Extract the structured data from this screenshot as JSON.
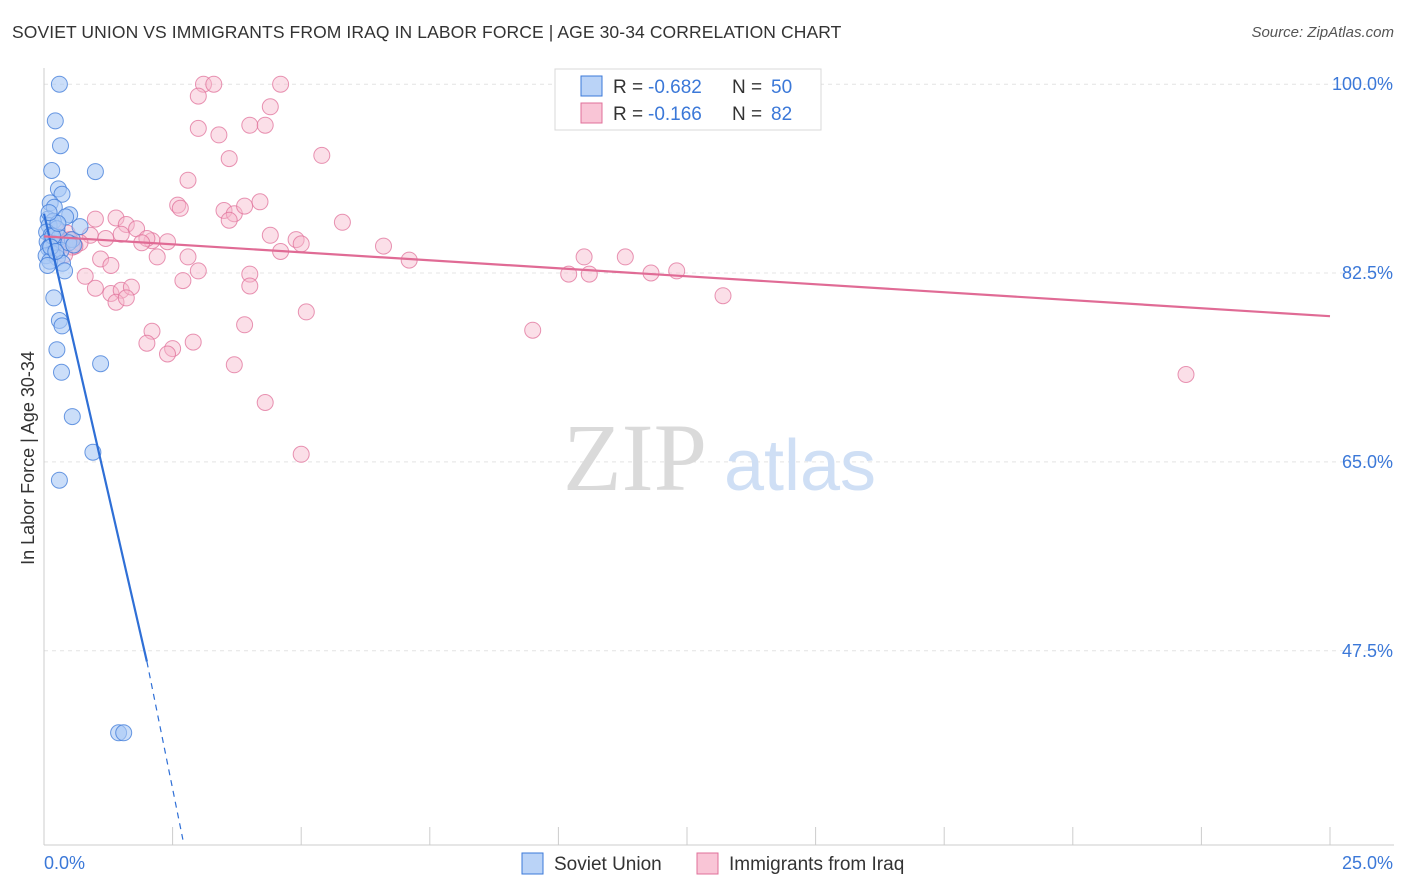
{
  "header": {
    "title": "SOVIET UNION VS IMMIGRANTS FROM IRAQ IN LABOR FORCE | AGE 30-34 CORRELATION CHART",
    "source": "Source: ZipAtlas.com"
  },
  "watermark": {
    "zip": "ZIP",
    "atlas": "atlas"
  },
  "chart_data": {
    "type": "scatter",
    "title": "SOVIET UNION VS IMMIGRANTS FROM IRAQ IN LABOR FORCE | AGE 30-34 CORRELATION CHART",
    "xlabel": "",
    "ylabel": "In Labor Force | Age 30-34",
    "xlim": [
      0,
      25
    ],
    "ylim": [
      29.5,
      101.5
    ],
    "x_tick_labels": {
      "min": "0.0%",
      "max": "25.0%"
    },
    "y_ticks": [
      {
        "value": 100.0,
        "label": "100.0%"
      },
      {
        "value": 82.5,
        "label": "82.5%"
      },
      {
        "value": 65.0,
        "label": "65.0%"
      },
      {
        "value": 47.5,
        "label": "47.5%"
      }
    ],
    "legend": {
      "rows": [
        {
          "r_label": "R =",
          "r_value": "-0.682",
          "n_label": "N =",
          "n_value": "50",
          "color": "#a9c8f5",
          "stroke": "#3b78d8"
        },
        {
          "r_label": "R =",
          "r_value": "-0.166",
          "n_label": "N =",
          "n_value": "82",
          "color": "#f7b7cc",
          "stroke": "#e0709a"
        }
      ]
    },
    "series": [
      {
        "name": "Soviet Union",
        "color": "#a9c8f5",
        "stroke": "#3b78d8",
        "line_color": "#2f6fd6",
        "trend": {
          "x0": 0.0,
          "y0": 88.0,
          "x1": 2.0,
          "y1": 46.5,
          "dash_to_x": 2.7,
          "dash_to_y": 30.0
        },
        "points": [
          [
            0.3,
            100.0
          ],
          [
            0.22,
            96.6
          ],
          [
            0.32,
            94.3
          ],
          [
            0.15,
            92.0
          ],
          [
            1.0,
            91.9
          ],
          [
            0.28,
            90.3
          ],
          [
            0.35,
            89.8
          ],
          [
            0.12,
            89.0
          ],
          [
            0.2,
            88.6
          ],
          [
            0.5,
            87.9
          ],
          [
            0.42,
            87.7
          ],
          [
            0.08,
            87.5
          ],
          [
            0.18,
            87.3
          ],
          [
            0.1,
            86.9
          ],
          [
            0.25,
            86.6
          ],
          [
            0.05,
            86.3
          ],
          [
            0.14,
            86.0
          ],
          [
            0.3,
            85.8
          ],
          [
            0.55,
            85.6
          ],
          [
            0.06,
            85.4
          ],
          [
            0.2,
            85.2
          ],
          [
            0.12,
            85.0
          ],
          [
            0.09,
            84.8
          ],
          [
            0.33,
            84.6
          ],
          [
            0.16,
            84.3
          ],
          [
            0.04,
            84.1
          ],
          [
            0.26,
            83.9
          ],
          [
            0.11,
            83.6
          ],
          [
            0.36,
            83.4
          ],
          [
            0.07,
            83.2
          ],
          [
            0.4,
            82.7
          ],
          [
            0.19,
            80.2
          ],
          [
            0.3,
            78.1
          ],
          [
            0.35,
            77.6
          ],
          [
            0.25,
            75.4
          ],
          [
            1.1,
            74.1
          ],
          [
            0.34,
            73.3
          ],
          [
            0.55,
            69.2
          ],
          [
            0.95,
            65.9
          ],
          [
            0.3,
            63.3
          ],
          [
            1.45,
            39.9
          ],
          [
            1.55,
            39.9
          ],
          [
            0.48,
            85.3
          ],
          [
            0.7,
            86.8
          ],
          [
            0.17,
            85.9
          ],
          [
            0.27,
            87.1
          ],
          [
            0.13,
            84.9
          ],
          [
            0.58,
            85.1
          ],
          [
            0.23,
            84.5
          ],
          [
            0.1,
            88.1
          ]
        ]
      },
      {
        "name": "Immigrants from Iraq",
        "color": "#f7b7cc",
        "stroke": "#e0709a",
        "line_color": "#e06b95",
        "trend": {
          "x0": 0.0,
          "y0": 85.9,
          "x1": 25.0,
          "y1": 78.5
        },
        "points": [
          [
            3.1,
            100.0
          ],
          [
            3.3,
            100.0
          ],
          [
            4.6,
            100.0
          ],
          [
            3.0,
            98.9
          ],
          [
            4.4,
            97.9
          ],
          [
            3.0,
            95.9
          ],
          [
            3.4,
            95.3
          ],
          [
            4.0,
            96.2
          ],
          [
            4.3,
            96.2
          ],
          [
            3.6,
            93.1
          ],
          [
            5.4,
            93.4
          ],
          [
            2.8,
            91.1
          ],
          [
            2.6,
            88.8
          ],
          [
            2.65,
            88.5
          ],
          [
            3.5,
            88.3
          ],
          [
            3.7,
            88.0
          ],
          [
            3.9,
            88.7
          ],
          [
            4.2,
            89.1
          ],
          [
            3.6,
            87.4
          ],
          [
            1.0,
            87.5
          ],
          [
            1.4,
            87.6
          ],
          [
            1.6,
            87.0
          ],
          [
            5.8,
            87.2
          ],
          [
            1.8,
            86.6
          ],
          [
            1.5,
            86.1
          ],
          [
            4.4,
            86.0
          ],
          [
            0.9,
            86.0
          ],
          [
            1.2,
            85.7
          ],
          [
            4.9,
            85.6
          ],
          [
            2.1,
            85.5
          ],
          [
            2.0,
            85.7
          ],
          [
            0.7,
            85.3
          ],
          [
            0.6,
            85.0
          ],
          [
            6.6,
            85.0
          ],
          [
            4.6,
            84.5
          ],
          [
            2.2,
            84.0
          ],
          [
            2.8,
            84.0
          ],
          [
            1.1,
            83.8
          ],
          [
            1.3,
            83.2
          ],
          [
            7.1,
            83.7
          ],
          [
            10.5,
            84.0
          ],
          [
            11.3,
            84.0
          ],
          [
            0.8,
            82.2
          ],
          [
            3.0,
            82.7
          ],
          [
            2.7,
            81.8
          ],
          [
            4.0,
            82.4
          ],
          [
            10.2,
            82.4
          ],
          [
            10.6,
            82.4
          ],
          [
            11.8,
            82.5
          ],
          [
            12.3,
            82.7
          ],
          [
            4.0,
            81.3
          ],
          [
            1.0,
            81.1
          ],
          [
            1.3,
            80.6
          ],
          [
            1.5,
            80.9
          ],
          [
            1.7,
            81.2
          ],
          [
            1.4,
            79.8
          ],
          [
            1.6,
            80.2
          ],
          [
            13.2,
            80.4
          ],
          [
            5.1,
            78.9
          ],
          [
            3.9,
            77.7
          ],
          [
            2.1,
            77.1
          ],
          [
            9.5,
            77.2
          ],
          [
            2.0,
            76.0
          ],
          [
            2.9,
            76.1
          ],
          [
            2.5,
            75.5
          ],
          [
            2.4,
            75.0
          ],
          [
            3.7,
            74.0
          ],
          [
            22.2,
            73.1
          ],
          [
            4.3,
            70.5
          ],
          [
            5.0,
            65.7
          ],
          [
            0.3,
            85.5
          ],
          [
            0.45,
            86.2
          ],
          [
            0.55,
            84.9
          ],
          [
            0.2,
            86.0
          ],
          [
            0.35,
            85.1
          ],
          [
            0.4,
            84.2
          ],
          [
            0.15,
            85.8
          ],
          [
            0.25,
            86.4
          ],
          [
            0.5,
            85.6
          ],
          [
            1.9,
            85.3
          ],
          [
            2.4,
            85.4
          ],
          [
            5.0,
            85.2
          ]
        ]
      }
    ]
  },
  "bottom_legend": [
    {
      "label": "Soviet Union",
      "color": "#a9c8f5",
      "stroke": "#3b78d8"
    },
    {
      "label": "Immigrants from Iraq",
      "color": "#f7b7cc",
      "stroke": "#e0709a"
    }
  ]
}
